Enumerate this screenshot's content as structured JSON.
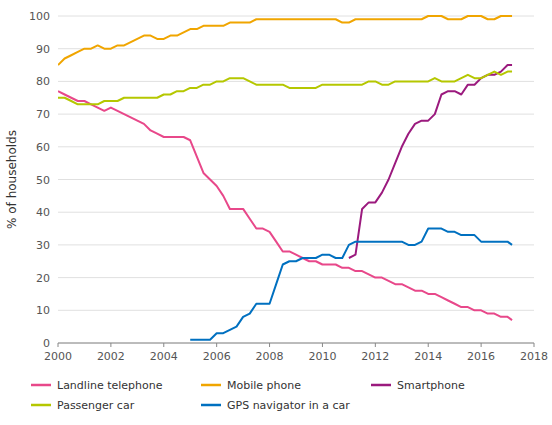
{
  "chart_data": {
    "type": "line",
    "ylabel": "% of households",
    "xlim": [
      2000,
      2018
    ],
    "ylim": [
      0,
      100
    ],
    "xticks": [
      2000,
      2002,
      2004,
      2006,
      2008,
      2010,
      2012,
      2014,
      2016,
      2018
    ],
    "yticks": [
      0,
      10,
      20,
      30,
      40,
      50,
      60,
      70,
      80,
      90,
      100
    ],
    "grid": true,
    "legend": "bottom",
    "series": [
      {
        "name": "Landline telephone",
        "color": "#e8488a",
        "x": [
          2000.0,
          2000.25,
          2000.5,
          2000.75,
          2001.0,
          2001.25,
          2001.5,
          2001.75,
          2002.0,
          2002.25,
          2002.5,
          2002.75,
          2003.0,
          2003.25,
          2003.5,
          2003.75,
          2004.0,
          2004.25,
          2004.5,
          2004.75,
          2005.0,
          2005.25,
          2005.5,
          2005.75,
          2006.0,
          2006.25,
          2006.5,
          2006.75,
          2007.0,
          2007.25,
          2007.5,
          2007.75,
          2008.0,
          2008.25,
          2008.5,
          2008.75,
          2009.0,
          2009.25,
          2009.5,
          2009.75,
          2010.0,
          2010.25,
          2010.5,
          2010.75,
          2011.0,
          2011.25,
          2011.5,
          2011.75,
          2012.0,
          2012.25,
          2012.5,
          2012.75,
          2013.0,
          2013.25,
          2013.5,
          2013.75,
          2014.0,
          2014.25,
          2014.5,
          2014.75,
          2015.0,
          2015.25,
          2015.5,
          2015.75,
          2016.0,
          2016.25,
          2016.5,
          2016.75,
          2017.0,
          2017.17
        ],
        "values": [
          77,
          76,
          75,
          74,
          74,
          73,
          72,
          71,
          72,
          71,
          70,
          69,
          68,
          67,
          65,
          64,
          63,
          63,
          63,
          63,
          62,
          57,
          52,
          50,
          48,
          45,
          41,
          41,
          41,
          38,
          35,
          35,
          34,
          31,
          28,
          28,
          27,
          26,
          25,
          25,
          24,
          24,
          24,
          23,
          23,
          22,
          22,
          21,
          20,
          20,
          19,
          18,
          18,
          17,
          16,
          16,
          15,
          15,
          14,
          13,
          12,
          11,
          11,
          10,
          10,
          9,
          9,
          8,
          8,
          7
        ]
      },
      {
        "name": "Mobile phone",
        "color": "#f0a500",
        "x": [
          2000.0,
          2000.25,
          2000.5,
          2000.75,
          2001.0,
          2001.25,
          2001.5,
          2001.75,
          2002.0,
          2002.25,
          2002.5,
          2002.75,
          2003.0,
          2003.25,
          2003.5,
          2003.75,
          2004.0,
          2004.25,
          2004.5,
          2004.75,
          2005.0,
          2005.25,
          2005.5,
          2005.75,
          2006.0,
          2006.25,
          2006.5,
          2006.75,
          2007.0,
          2007.25,
          2007.5,
          2007.75,
          2008.0,
          2008.25,
          2008.5,
          2008.75,
          2009.0,
          2009.25,
          2009.5,
          2009.75,
          2010.0,
          2010.25,
          2010.5,
          2010.75,
          2011.0,
          2011.25,
          2011.5,
          2011.75,
          2012.0,
          2012.25,
          2012.5,
          2012.75,
          2013.0,
          2013.25,
          2013.5,
          2013.75,
          2014.0,
          2014.25,
          2014.5,
          2014.75,
          2015.0,
          2015.25,
          2015.5,
          2015.75,
          2016.0,
          2016.25,
          2016.5,
          2016.75,
          2017.0,
          2017.17
        ],
        "values": [
          85,
          87,
          88,
          89,
          90,
          90,
          91,
          90,
          90,
          91,
          91,
          92,
          93,
          94,
          94,
          93,
          93,
          94,
          94,
          95,
          96,
          96,
          97,
          97,
          97,
          97,
          98,
          98,
          98,
          98,
          99,
          99,
          99,
          99,
          99,
          99,
          99,
          99,
          99,
          99,
          99,
          99,
          99,
          98,
          98,
          99,
          99,
          99,
          99,
          99,
          99,
          99,
          99,
          99,
          99,
          99,
          100,
          100,
          100,
          99,
          99,
          99,
          100,
          100,
          100,
          99,
          99,
          100,
          100,
          100
        ]
      },
      {
        "name": "Smartphone",
        "color": "#9b1a7e",
        "x": [
          2011.0,
          2011.25,
          2011.5,
          2011.75,
          2012.0,
          2012.25,
          2012.5,
          2012.75,
          2013.0,
          2013.25,
          2013.5,
          2013.75,
          2014.0,
          2014.25,
          2014.5,
          2014.75,
          2015.0,
          2015.25,
          2015.5,
          2015.75,
          2016.0,
          2016.25,
          2016.5,
          2016.75,
          2017.0,
          2017.17
        ],
        "values": [
          26,
          27,
          41,
          43,
          43,
          46,
          50,
          55,
          60,
          64,
          67,
          68,
          68,
          70,
          76,
          77,
          77,
          76,
          79,
          79,
          81,
          82,
          82,
          83,
          85,
          85
        ]
      },
      {
        "name": "Passenger car",
        "color": "#b5c700",
        "x": [
          2000.0,
          2000.25,
          2000.5,
          2000.75,
          2001.0,
          2001.25,
          2001.5,
          2001.75,
          2002.0,
          2002.25,
          2002.5,
          2002.75,
          2003.0,
          2003.25,
          2003.5,
          2003.75,
          2004.0,
          2004.25,
          2004.5,
          2004.75,
          2005.0,
          2005.25,
          2005.5,
          2005.75,
          2006.0,
          2006.25,
          2006.5,
          2006.75,
          2007.0,
          2007.25,
          2007.5,
          2007.75,
          2008.0,
          2008.25,
          2008.5,
          2008.75,
          2009.0,
          2009.25,
          2009.5,
          2009.75,
          2010.0,
          2010.25,
          2010.5,
          2010.75,
          2011.0,
          2011.25,
          2011.5,
          2011.75,
          2012.0,
          2012.25,
          2012.5,
          2012.75,
          2013.0,
          2013.25,
          2013.5,
          2013.75,
          2014.0,
          2014.25,
          2014.5,
          2014.75,
          2015.0,
          2015.25,
          2015.5,
          2015.75,
          2016.0,
          2016.25,
          2016.5,
          2016.75,
          2017.0,
          2017.17
        ],
        "values": [
          75,
          75,
          74,
          73,
          73,
          73,
          73,
          74,
          74,
          74,
          75,
          75,
          75,
          75,
          75,
          75,
          76,
          76,
          77,
          77,
          78,
          78,
          79,
          79,
          80,
          80,
          81,
          81,
          81,
          80,
          79,
          79,
          79,
          79,
          79,
          78,
          78,
          78,
          78,
          78,
          79,
          79,
          79,
          79,
          79,
          79,
          79,
          80,
          80,
          79,
          79,
          80,
          80,
          80,
          80,
          80,
          80,
          81,
          80,
          80,
          80,
          81,
          82,
          81,
          81,
          82,
          83,
          82,
          83,
          83
        ]
      },
      {
        "name": "GPS navigator in a car",
        "color": "#0070c0",
        "x": [
          2005.0,
          2005.25,
          2005.5,
          2005.75,
          2006.0,
          2006.25,
          2006.5,
          2006.75,
          2007.0,
          2007.25,
          2007.5,
          2007.75,
          2008.0,
          2008.25,
          2008.5,
          2008.75,
          2009.0,
          2009.25,
          2009.5,
          2009.75,
          2010.0,
          2010.25,
          2010.5,
          2010.75,
          2011.0,
          2011.25,
          2011.5,
          2011.75,
          2012.0,
          2012.25,
          2012.5,
          2012.75,
          2013.0,
          2013.25,
          2013.5,
          2013.75,
          2014.0,
          2014.25,
          2014.5,
          2014.75,
          2015.0,
          2015.25,
          2015.5,
          2015.75,
          2016.0,
          2016.25,
          2016.5,
          2016.75,
          2017.0,
          2017.17
        ],
        "values": [
          1,
          1,
          1,
          1,
          3,
          3,
          4,
          5,
          8,
          9,
          12,
          12,
          12,
          18,
          24,
          25,
          25,
          26,
          26,
          26,
          27,
          27,
          26,
          26,
          30,
          31,
          31,
          31,
          31,
          31,
          31,
          31,
          31,
          30,
          30,
          31,
          35,
          35,
          35,
          34,
          34,
          33,
          33,
          33,
          31,
          31,
          31,
          31,
          31,
          30
        ]
      }
    ]
  }
}
